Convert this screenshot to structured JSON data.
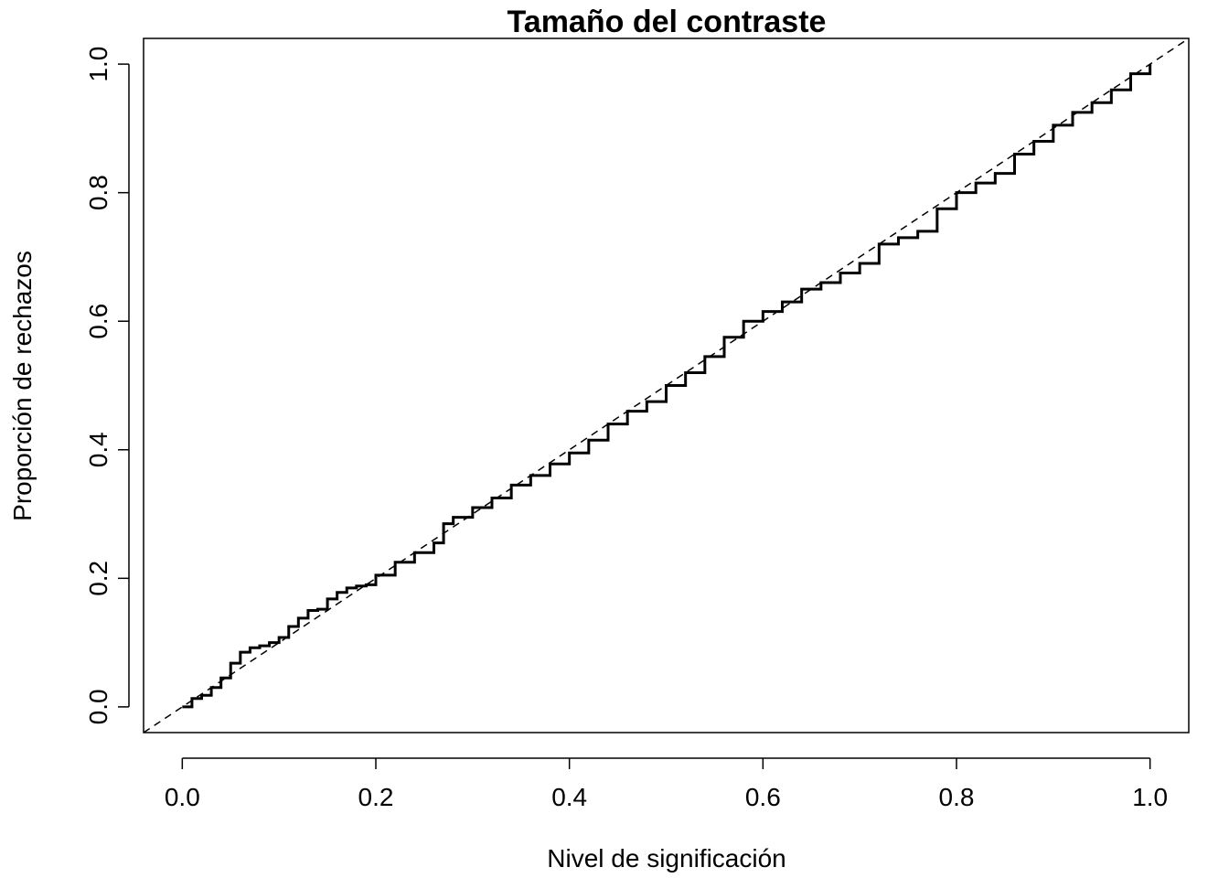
{
  "chart_data": {
    "type": "line",
    "title": "Tamaño del contraste",
    "xlabel": "Nivel de significación",
    "ylabel": "Proporción de rechazos",
    "xlim": [
      -0.04,
      1.04
    ],
    "ylim": [
      -0.04,
      1.04
    ],
    "x_ticks": [
      0.0,
      0.2,
      0.4,
      0.6,
      0.8,
      1.0
    ],
    "x_tick_labels": [
      "0.0",
      "0.2",
      "0.4",
      "0.6",
      "0.8",
      "1.0"
    ],
    "y_ticks": [
      0.0,
      0.2,
      0.4,
      0.6,
      0.8,
      1.0
    ],
    "y_tick_labels": [
      "0.0",
      "0.2",
      "0.4",
      "0.6",
      "0.8",
      "1.0"
    ],
    "grid": false,
    "legend": "none",
    "series": [
      {
        "style": "step",
        "color": "#000000",
        "x": [
          0.0,
          0.01,
          0.02,
          0.03,
          0.04,
          0.05,
          0.06,
          0.07,
          0.08,
          0.09,
          0.1,
          0.11,
          0.12,
          0.13,
          0.14,
          0.15,
          0.16,
          0.17,
          0.18,
          0.19,
          0.2,
          0.22,
          0.24,
          0.26,
          0.27,
          0.28,
          0.3,
          0.32,
          0.34,
          0.36,
          0.38,
          0.4,
          0.42,
          0.44,
          0.46,
          0.48,
          0.5,
          0.52,
          0.54,
          0.56,
          0.58,
          0.6,
          0.62,
          0.64,
          0.66,
          0.68,
          0.7,
          0.72,
          0.74,
          0.76,
          0.78,
          0.8,
          0.82,
          0.84,
          0.86,
          0.88,
          0.9,
          0.92,
          0.94,
          0.96,
          0.98,
          1.0
        ],
        "y": [
          0.0,
          0.013,
          0.018,
          0.03,
          0.045,
          0.068,
          0.085,
          0.092,
          0.095,
          0.1,
          0.108,
          0.125,
          0.138,
          0.15,
          0.152,
          0.168,
          0.178,
          0.185,
          0.188,
          0.19,
          0.205,
          0.225,
          0.24,
          0.255,
          0.285,
          0.295,
          0.31,
          0.325,
          0.345,
          0.36,
          0.378,
          0.395,
          0.415,
          0.44,
          0.46,
          0.475,
          0.5,
          0.52,
          0.545,
          0.575,
          0.6,
          0.615,
          0.63,
          0.65,
          0.66,
          0.675,
          0.69,
          0.72,
          0.73,
          0.74,
          0.775,
          0.8,
          0.815,
          0.83,
          0.86,
          0.88,
          0.905,
          0.925,
          0.94,
          0.96,
          0.985,
          1.0
        ]
      },
      {
        "style": "dashed-reference",
        "color": "#000000",
        "x": [
          -0.04,
          1.04
        ],
        "y": [
          -0.04,
          1.04
        ]
      }
    ]
  }
}
